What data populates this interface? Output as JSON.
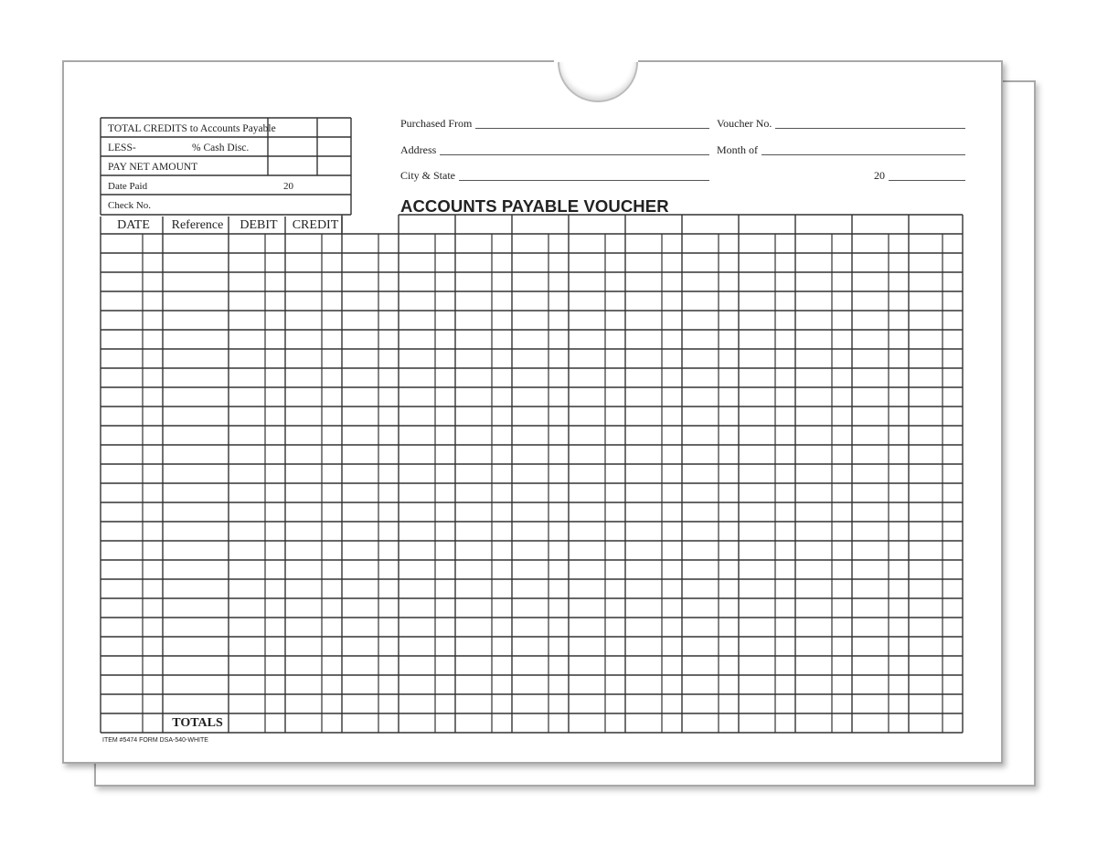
{
  "form": {
    "title": "ACCOUNTS PAYABLE VOUCHER",
    "footer": "ITEM #5474  FORM DSA-540-WHITE",
    "summary_box": {
      "rows": [
        "TOTAL CREDITS to Accounts Payable",
        "LESS-",
        "PAY NET AMOUNT",
        "Date Paid",
        "Check No."
      ],
      "cash_disc_label": "% Cash Disc.",
      "date_year_prefix": "20"
    },
    "fields": {
      "purchased_from": "Purchased From",
      "address": "Address",
      "city_state": "City & State",
      "voucher_no": "Voucher No.",
      "month_of": "Month of",
      "year_prefix": "20"
    },
    "columns": [
      "DATE",
      "Reference",
      "DEBIT",
      "CREDIT"
    ],
    "totals_label": "TOTALS",
    "data_rows": 25
  }
}
